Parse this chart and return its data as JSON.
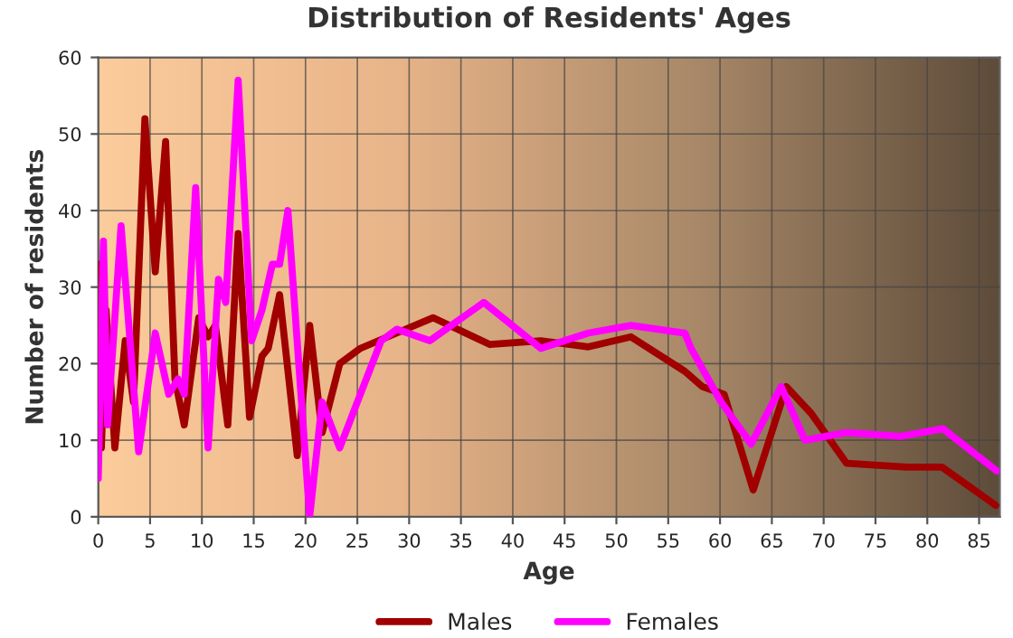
{
  "chart_data": {
    "type": "line",
    "title": "Distribution of Residents' Ages",
    "xlabel": "Age",
    "ylabel": "Number of residents",
    "xlim": [
      0,
      87
    ],
    "xticks": [
      0,
      5,
      10,
      15,
      20,
      25,
      30,
      35,
      40,
      45,
      50,
      55,
      60,
      65,
      70,
      75,
      80,
      85
    ],
    "ylim": [
      0,
      60
    ],
    "yticks": [
      0,
      10,
      20,
      30,
      40,
      50,
      60
    ],
    "grid": true,
    "legend": "bottom",
    "marker": "none",
    "line_style": "solid",
    "series": [
      {
        "name": "Males",
        "color": "#a00000",
        "x": [
          0,
          0.3,
          0.75,
          1.6,
          2.6,
          3.4,
          4.5,
          5.5,
          6.5,
          7.4,
          8.3,
          9.7,
          10.6,
          11.3,
          12.5,
          13.5,
          14.6,
          15.8,
          16.4,
          17.5,
          19.2,
          20.4,
          21.6,
          23.3,
          25.3,
          28.8,
          32.3,
          37.8,
          42.7,
          47.3,
          51.4,
          56.6,
          58.3,
          60.4,
          63.2,
          66.4,
          68.8,
          72.2,
          78,
          81.4,
          86.6
        ],
        "values": [
          33,
          9,
          27,
          9,
          23,
          15,
          52,
          32,
          49,
          18,
          12,
          26,
          23.5,
          25,
          12,
          37,
          13,
          21,
          22,
          29,
          8,
          25,
          11,
          20,
          22,
          24,
          26,
          22.5,
          23,
          22.2,
          23.5,
          19,
          17,
          16,
          3.5,
          17,
          13.5,
          7,
          6.5,
          6.5,
          1.5
        ]
      },
      {
        "name": "Females",
        "color": "#ff00ff",
        "x": [
          0,
          0.5,
          0.9,
          2.2,
          3.9,
          5.5,
          6.8,
          7.7,
          8.3,
          9.4,
          10.6,
          11.6,
          12.3,
          13.5,
          14.8,
          15.8,
          16.8,
          17.5,
          18.3,
          20.4,
          21.6,
          23.3,
          25.0,
          27.3,
          28.8,
          32.0,
          37.2,
          42.7,
          47.3,
          51.4,
          56.6,
          57.2,
          60.1,
          63,
          65.9,
          68.2,
          72.2,
          77.4,
          81.5,
          86.7
        ],
        "values": [
          5,
          36,
          12,
          38,
          8.5,
          24,
          16,
          18,
          16,
          43,
          9,
          31,
          28,
          57,
          23,
          27,
          33,
          33,
          40,
          0,
          15,
          9,
          15,
          23,
          24.5,
          23,
          28,
          22,
          24,
          25,
          24,
          22,
          15,
          9.5,
          17,
          10,
          11,
          10.5,
          11.5,
          6
        ]
      }
    ]
  }
}
